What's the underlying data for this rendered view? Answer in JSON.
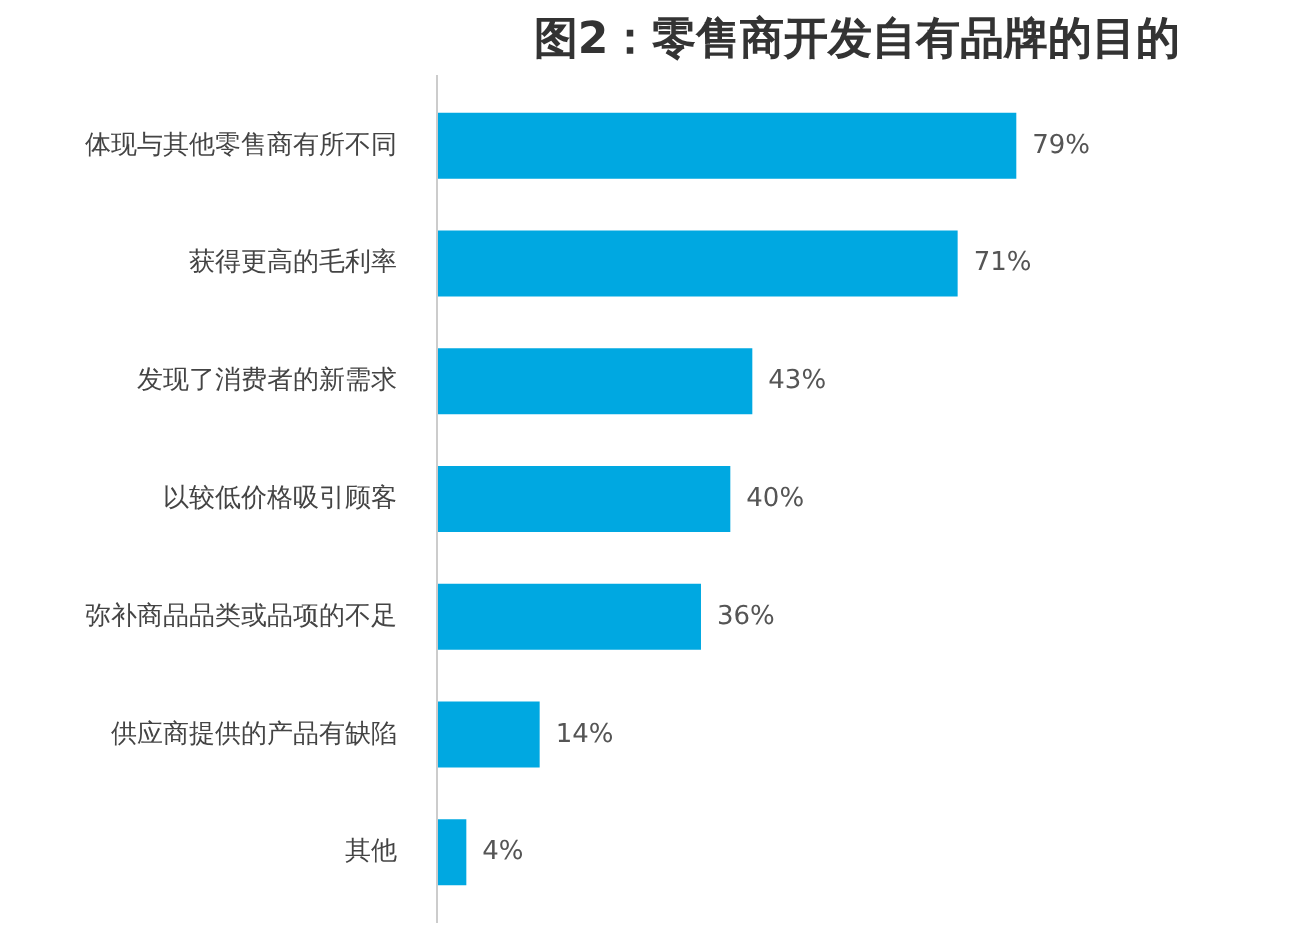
{
  "chart_data": {
    "type": "bar",
    "orientation": "horizontal",
    "title": "图2：零售商开发自有品牌的目的",
    "categories": [
      "体现与其他零售商有所不同",
      "获得更高的毛利率",
      "发现了消费者的新需求",
      "以较低价格吸引顾客",
      "弥补商品品类或品项的不足",
      "供应商提供的产品有缺陷",
      "其他"
    ],
    "series": [
      {
        "color": "#00a8e1",
        "values": [
          79,
          71,
          43,
          40,
          36,
          14,
          4
        ],
        "value_labels": [
          "79%",
          "71%",
          "43%",
          "40%",
          "36%",
          "14%",
          "4%"
        ]
      }
    ],
    "grid": false
  }
}
